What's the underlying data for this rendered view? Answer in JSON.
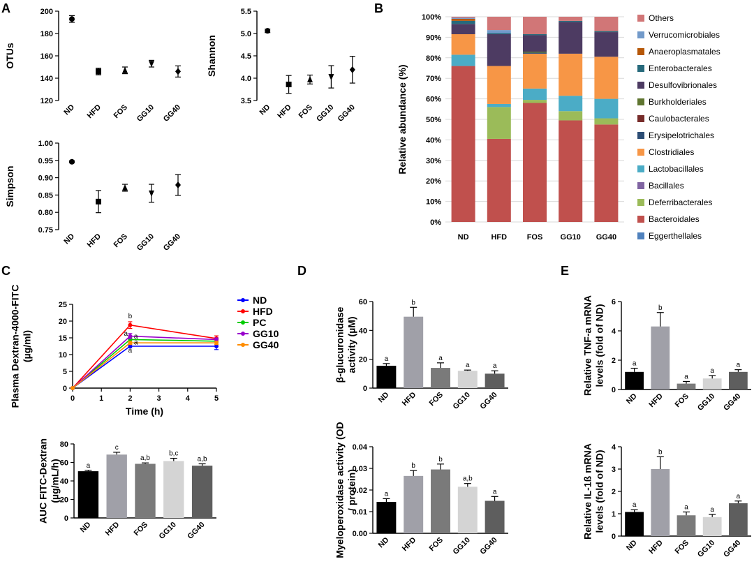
{
  "panel_letters": [
    "A",
    "B",
    "C",
    "D",
    "E"
  ],
  "chart_data": [
    {
      "panel": "A",
      "id": "otus",
      "type": "scatter",
      "categories": [
        "ND",
        "HFD",
        "FOS",
        "GG10",
        "GG40"
      ],
      "values": [
        193,
        146,
        147,
        153,
        146
      ],
      "errors": [
        3,
        3,
        3,
        3,
        5
      ],
      "markers": [
        "circle",
        "square",
        "triangle",
        "triangle-down",
        "diamond"
      ],
      "ylabel": "OTUs",
      "ylim": [
        120,
        200
      ],
      "yticks": [
        120,
        140,
        160,
        180,
        200
      ]
    },
    {
      "panel": "A",
      "id": "shannon",
      "type": "scatter",
      "categories": [
        "ND",
        "HFD",
        "FOS",
        "GG10",
        "GG40"
      ],
      "values": [
        5.06,
        3.86,
        3.97,
        4.03,
        4.19
      ],
      "errors": [
        0.04,
        0.2,
        0.1,
        0.25,
        0.3
      ],
      "markers": [
        "circle",
        "square",
        "triangle",
        "triangle-down",
        "diamond"
      ],
      "ylabel": "Shannon",
      "ylim": [
        3.5,
        5.5
      ],
      "yticks": [
        3.5,
        4.0,
        4.5,
        5.0,
        5.5
      ]
    },
    {
      "panel": "A",
      "id": "simpson",
      "type": "scatter",
      "categories": [
        "ND",
        "HFD",
        "FOS",
        "GG10",
        "GG40"
      ],
      "values": [
        0.946,
        0.831,
        0.871,
        0.855,
        0.879
      ],
      "errors": [
        0.003,
        0.032,
        0.01,
        0.026,
        0.03
      ],
      "markers": [
        "circle",
        "square",
        "triangle",
        "triangle-down",
        "diamond"
      ],
      "ylabel": "Simpson",
      "ylim": [
        0.75,
        1.0
      ],
      "yticks": [
        0.75,
        0.8,
        0.85,
        0.9,
        0.95,
        1.0
      ]
    },
    {
      "panel": "B",
      "id": "abundance",
      "type": "bar",
      "stacked": true,
      "categories": [
        "ND",
        "HFD",
        "FOS",
        "GG10",
        "GG40"
      ],
      "ylabel": "Relative abundance (%)",
      "ylim": [
        0,
        100
      ],
      "yticks": [
        "0%",
        "10%",
        "20%",
        "30%",
        "40%",
        "50%",
        "60%",
        "70%",
        "80%",
        "90%",
        "100%"
      ],
      "series": [
        {
          "name": "Eggerthellales",
          "color": "#4f81bd",
          "values": [
            0,
            0,
            0,
            0,
            0
          ]
        },
        {
          "name": "Bacteroidales",
          "color": "#c0504d",
          "values": [
            76,
            40.5,
            58,
            49.5,
            47.5
          ]
        },
        {
          "name": "Deferribacterales",
          "color": "#9bbb59",
          "values": [
            0,
            15.5,
            1.5,
            4.5,
            3
          ]
        },
        {
          "name": "Bacillales",
          "color": "#8064a2",
          "values": [
            0,
            0,
            0,
            0,
            0
          ]
        },
        {
          "name": "Lactobacillales",
          "color": "#4bacc6",
          "values": [
            5.5,
            1.5,
            5.5,
            7.5,
            9.5
          ]
        },
        {
          "name": "Clostridiales",
          "color": "#f79646",
          "values": [
            10,
            18.5,
            17,
            20.5,
            20.5
          ]
        },
        {
          "name": "Erysipelotrichales",
          "color": "#2c4d75",
          "values": [
            0,
            0,
            0.5,
            0,
            0
          ]
        },
        {
          "name": "Caulobacterales",
          "color": "#772c2a",
          "values": [
            0,
            0,
            0,
            0,
            0
          ]
        },
        {
          "name": "Burkholderiales",
          "color": "#5f7530",
          "values": [
            0,
            0,
            0.5,
            0,
            0
          ]
        },
        {
          "name": "Desulfovibrionales",
          "color": "#4d3b62",
          "values": [
            5,
            15.5,
            8,
            15.5,
            12
          ]
        },
        {
          "name": "Enterobacterales",
          "color": "#276a7c",
          "values": [
            1.5,
            0.5,
            0.5,
            0.5,
            0.5
          ]
        },
        {
          "name": "Anaeroplasmatales",
          "color": "#b65708",
          "values": [
            1,
            0,
            0,
            0,
            0
          ]
        },
        {
          "name": "Verrucomicrobiales",
          "color": "#729aca",
          "values": [
            0.5,
            1.5,
            0,
            0,
            0
          ]
        },
        {
          "name": "Others",
          "color": "#d17677",
          "values": [
            0.5,
            6.5,
            8.5,
            2,
            7
          ]
        }
      ],
      "legend_order": [
        "Others",
        "Verrucomicrobiales",
        "Anaeroplasmatales",
        "Enterobacterales",
        "Desulfovibrionales",
        "Burkholderiales",
        "Caulobacterales",
        "Erysipelotrichales",
        "Clostridiales",
        "Lactobacillales",
        "Bacillales",
        "Deferribacterales",
        "Bacteroidales",
        "Eggerthellales"
      ]
    },
    {
      "panel": "C",
      "id": "dextran_time",
      "type": "line",
      "x": [
        0,
        2,
        5
      ],
      "xlabel": "Time (h)",
      "ylabel": "Plasma Dextran-4000-FITC (µg/ml)",
      "ylim": [
        0,
        25
      ],
      "yticks": [
        0,
        5,
        10,
        15,
        20,
        25
      ],
      "xlim": [
        0,
        5
      ],
      "xticks": [
        0,
        1,
        2,
        3,
        4,
        5
      ],
      "series": [
        {
          "name": "ND",
          "color": "#0000ff",
          "values": [
            0,
            12.5,
            12.5
          ],
          "errors": [
            0,
            0.5,
            1
          ]
        },
        {
          "name": "HFD",
          "color": "#ff0000",
          "values": [
            0,
            18.8,
            14.8
          ],
          "errors": [
            0,
            1,
            0.8
          ]
        },
        {
          "name": "PC",
          "color": "#00cc00",
          "values": [
            0,
            14.5,
            14
          ],
          "errors": [
            0,
            0.5,
            0.5
          ]
        },
        {
          "name": "GG10",
          "color": "#9900cc",
          "values": [
            0,
            15.5,
            14.5
          ],
          "errors": [
            0,
            0.8,
            0.5
          ]
        },
        {
          "name": "GG40",
          "color": "#ff8c00",
          "values": [
            0,
            13.5,
            13.5
          ],
          "errors": [
            0,
            0.5,
            0.5
          ]
        }
      ],
      "annotations": [
        {
          "text": "b",
          "x": 2,
          "y": 20.8
        },
        {
          "text": "a",
          "x": 1.85,
          "y": 15.6
        },
        {
          "text": "a",
          "x": 2.2,
          "y": 14.8
        },
        {
          "text": "a",
          "x": 2.2,
          "y": 13.0
        },
        {
          "text": "a",
          "x": 2.0,
          "y": 10.6
        }
      ]
    },
    {
      "panel": "C",
      "id": "auc",
      "type": "bar",
      "categories": [
        "ND",
        "HFD",
        "FOS",
        "GG10",
        "GG40"
      ],
      "values": [
        50.5,
        68.5,
        58.5,
        61.5,
        56.5
      ],
      "errors": [
        1,
        2.5,
        1,
        3,
        2
      ],
      "letters": [
        "a",
        "c",
        "a,b",
        "b,c",
        "a,b"
      ],
      "ylabel": "AUC FITC-Dextran (µg/mL/h)",
      "ylim": [
        0,
        80
      ],
      "yticks": [
        0,
        20,
        40,
        60,
        80
      ]
    },
    {
      "panel": "D",
      "id": "glucuronidase",
      "type": "bar",
      "categories": [
        "ND",
        "HFD",
        "FOS",
        "GG10",
        "GG40"
      ],
      "values": [
        15.5,
        49.5,
        14,
        12,
        10
      ],
      "errors": [
        1.5,
        6.5,
        3.5,
        0.5,
        2
      ],
      "letters": [
        "a",
        "b",
        "a",
        "a",
        "a"
      ],
      "ylabel": "β-glucuronidase activity (µM)",
      "ylim": [
        0,
        60
      ],
      "yticks": [
        0,
        20,
        40,
        60
      ]
    },
    {
      "panel": "D",
      "id": "myeloperoxidase",
      "type": "bar",
      "categories": [
        "ND",
        "HFD",
        "FOS",
        "GG10",
        "GG40"
      ],
      "values": [
        0.0145,
        0.0265,
        0.0295,
        0.0215,
        0.015
      ],
      "errors": [
        0.0015,
        0.0025,
        0.0025,
        0.0015,
        0.002
      ],
      "letters": [
        "a",
        "b",
        "b",
        "a,b",
        "a"
      ],
      "ylabel": "Myeloperoxidase activity (OD / protein)",
      "ylim": [
        0,
        0.04
      ],
      "yticks": [
        "0.00",
        "0.01",
        "0.02",
        "0.03",
        "0.04"
      ]
    },
    {
      "panel": "E",
      "id": "tnf",
      "type": "bar",
      "categories": [
        "ND",
        "HFD",
        "FOS",
        "GG10",
        "GG40"
      ],
      "values": [
        1.2,
        4.3,
        0.4,
        0.75,
        1.2
      ],
      "errors": [
        0.25,
        0.95,
        0.15,
        0.2,
        0.15
      ],
      "letters": [
        "a",
        "b",
        "a",
        "a",
        "a"
      ],
      "ylabel": "Relative TNF-a mRNA levels (fold of ND)",
      "ylim": [
        0,
        6
      ],
      "yticks": [
        0,
        2,
        4,
        6
      ]
    },
    {
      "panel": "E",
      "id": "il1b",
      "type": "bar",
      "categories": [
        "ND",
        "HFD",
        "FOS",
        "GG10",
        "GG40"
      ],
      "values": [
        1.08,
        3.0,
        0.93,
        0.85,
        1.47
      ],
      "errors": [
        0.1,
        0.55,
        0.15,
        0.12,
        0.1
      ],
      "letters": [
        "a",
        "b",
        "a",
        "a",
        "a"
      ],
      "ylabel": "Relative IL-1ß mRNA levels (fold of ND)",
      "ylim": [
        0,
        4
      ],
      "yticks": [
        0,
        1,
        2,
        3,
        4
      ]
    }
  ],
  "colors": {
    "bar_fills": [
      "#000000",
      "#a0a0a8",
      "#7a7a7a",
      "#d4d4d4",
      "#5e5e5e"
    ]
  }
}
